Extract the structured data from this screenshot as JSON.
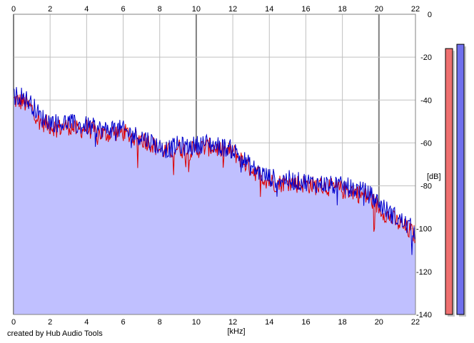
{
  "chart_data": {
    "type": "area",
    "title": "",
    "xlabel": "[kHz]",
    "ylabel": "[dB]",
    "xlim": [
      0,
      22
    ],
    "ylim": [
      -140,
      0
    ],
    "x_ticks": [
      "0",
      "2",
      "4",
      "6",
      "8",
      "10",
      "12",
      "14",
      "16",
      "18",
      "20",
      "22"
    ],
    "y_ticks": [
      "0",
      "-20",
      "-40",
      "-60",
      "-80",
      "-100",
      "-120",
      "-140"
    ],
    "grid": true,
    "colors": {
      "fill": "#c0c0ff",
      "left": "#dd0000",
      "right": "#0000cc",
      "grid": "#c0c0c0",
      "major_grid": "#808080"
    },
    "series": [
      {
        "color": "#dd0000",
        "x": [
          0,
          0.5,
          1,
          1.5,
          2,
          2.5,
          3,
          3.5,
          4,
          4.5,
          5,
          5.5,
          6,
          6.5,
          7,
          7.5,
          8,
          8.5,
          9,
          9.5,
          10,
          10.5,
          11,
          11.5,
          12,
          12.5,
          13,
          13.5,
          14,
          14.5,
          15,
          15.5,
          16,
          16.5,
          17,
          17.5,
          18,
          18.5,
          19,
          19.5,
          20,
          20.5,
          21,
          21.5,
          22
        ],
        "values": [
          -40,
          -41,
          -44,
          -50,
          -52,
          -53,
          -52,
          -54,
          -53,
          -55,
          -56,
          -55,
          -55,
          -57,
          -58,
          -60,
          -63,
          -64,
          -62,
          -64,
          -63,
          -62,
          -62,
          -64,
          -64,
          -68,
          -72,
          -75,
          -78,
          -79,
          -78,
          -79,
          -79,
          -80,
          -80,
          -81,
          -82,
          -82,
          -84,
          -86,
          -90,
          -94,
          -97,
          -100,
          -103
        ]
      },
      {
        "color": "#0000cc",
        "x": [
          0,
          0.5,
          1,
          1.5,
          2,
          2.5,
          3,
          3.5,
          4,
          4.5,
          5,
          5.5,
          6,
          6.5,
          7,
          7.5,
          8,
          8.5,
          9,
          9.5,
          10,
          10.5,
          11,
          11.5,
          12,
          12.5,
          13,
          13.5,
          14,
          14.5,
          15,
          15.5,
          16,
          16.5,
          17,
          17.5,
          18,
          18.5,
          19,
          19.5,
          20,
          20.5,
          21,
          21.5,
          22
        ],
        "values": [
          -38,
          -38,
          -42,
          -48,
          -50,
          -51,
          -50,
          -52,
          -52,
          -53,
          -54,
          -53,
          -54,
          -56,
          -57,
          -59,
          -62,
          -63,
          -61,
          -62,
          -61,
          -60,
          -61,
          -62,
          -63,
          -67,
          -71,
          -74,
          -76,
          -77,
          -77,
          -78,
          -78,
          -79,
          -79,
          -80,
          -80,
          -81,
          -82,
          -84,
          -88,
          -92,
          -95,
          -98,
          -101
        ]
      }
    ],
    "level_meters": [
      {
        "color": "#ee7070",
        "value": -16
      },
      {
        "color": "#7070ee",
        "value": -14
      }
    ]
  },
  "footer": {
    "credit": "created by Hub Audio Tools"
  }
}
